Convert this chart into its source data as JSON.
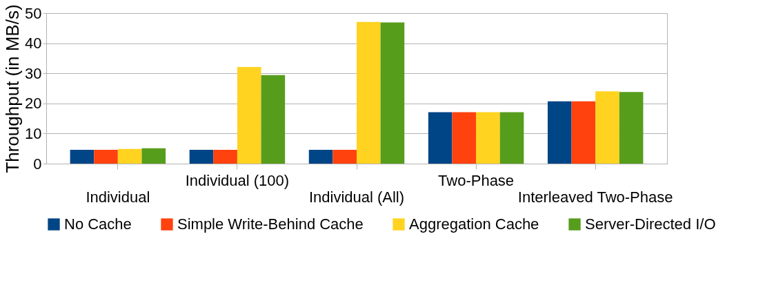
{
  "chart_data": {
    "type": "bar",
    "ylabel": "Throughput (in MB/s)",
    "categories": [
      "Individual",
      "Individual (100)",
      "Individual (All)",
      "Two-Phase",
      "Interleaved Two-Phase"
    ],
    "series": [
      {
        "name": "No Cache",
        "color": "#004586",
        "values": [
          4.6,
          4.6,
          4.6,
          17.1,
          20.7
        ]
      },
      {
        "name": "Simple Write-Behind Cache",
        "color": "#ff420e",
        "values": [
          4.6,
          4.6,
          4.6,
          17.1,
          20.7
        ]
      },
      {
        "name": "Aggregation Cache",
        "color": "#ffd320",
        "values": [
          4.9,
          32.1,
          47.1,
          17.1,
          24.0
        ]
      },
      {
        "name": "Server-Directed I/O",
        "color": "#579d1c",
        "values": [
          5.1,
          29.4,
          46.9,
          17.1,
          23.8
        ]
      }
    ],
    "ylim": [
      0,
      50
    ],
    "yticks": [
      0,
      10,
      20,
      30,
      40,
      50
    ],
    "grid": "y",
    "legend": "bottom"
  }
}
